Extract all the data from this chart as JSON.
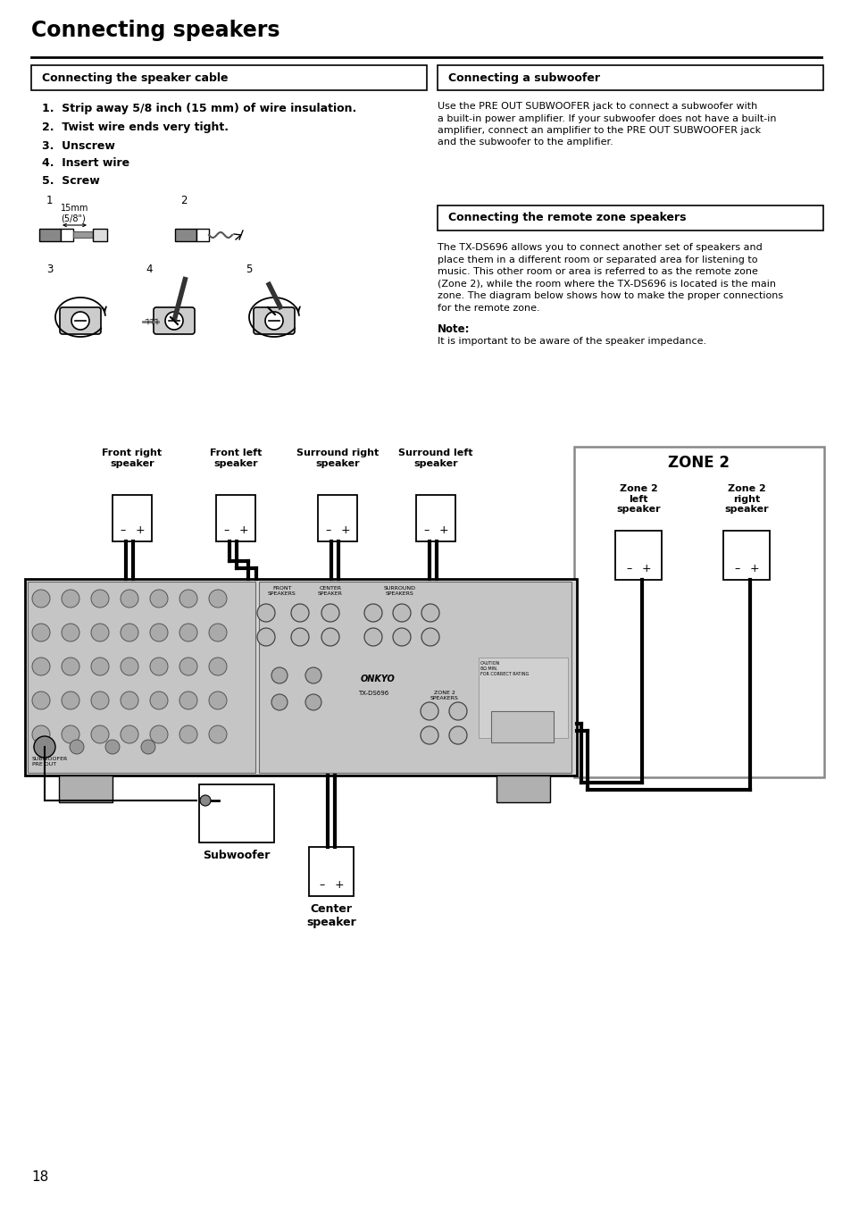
{
  "title": "Connecting speakers",
  "bg_color": "#ffffff",
  "page_number": "18",
  "box1_title": "Connecting the speaker cable",
  "box2_title": "Connecting a subwoofer",
  "box3_title": "Connecting the remote zone speakers",
  "steps": [
    "1.  Strip away 5/8 inch (15 mm) of wire insulation.",
    "2.  Twist wire ends very tight.",
    "3.  Unscrew",
    "4.  Insert wire",
    "5.  Screw"
  ],
  "subwoofer_lines": [
    "Use the PRE OUT SUBWOOFER jack to connect a subwoofer with",
    "a built-in power amplifier. If your subwoofer does not have a built-in",
    "amplifier, connect an amplifier to the PRE OUT SUBWOOFER jack",
    "and the subwoofer to the amplifier."
  ],
  "remote_zone_lines": [
    "The TX-DS696 allows you to connect another set of speakers and",
    "place them in a different room or separated area for listening to",
    "music. This other room or area is referred to as the remote zone",
    "(Zone 2), while the room where the TX-DS696 is located is the main",
    "zone. The diagram below shows how to make the proper connections",
    "for the remote zone."
  ],
  "note_label": "Note:",
  "note_text": "It is important to be aware of the speaker impedance.",
  "label_front_right": "Front right\nspeaker",
  "label_front_left": "Front left\nspeaker",
  "label_surround_right": "Surround right\nspeaker",
  "label_surround_left": "Surround left\nspeaker",
  "label_zone2": "ZONE 2",
  "label_zone2_left": "Zone 2\nleft\nspeaker",
  "label_zone2_right": "Zone 2\nright\nspeaker",
  "label_subwoofer": "Subwoofer",
  "label_center": "Center\nspeaker",
  "label_15mm": "15mm\n(5/8\")",
  "wire_color": "#000000",
  "receiver_color": "#e0e0e0",
  "zone2_box_color": "#cccccc"
}
